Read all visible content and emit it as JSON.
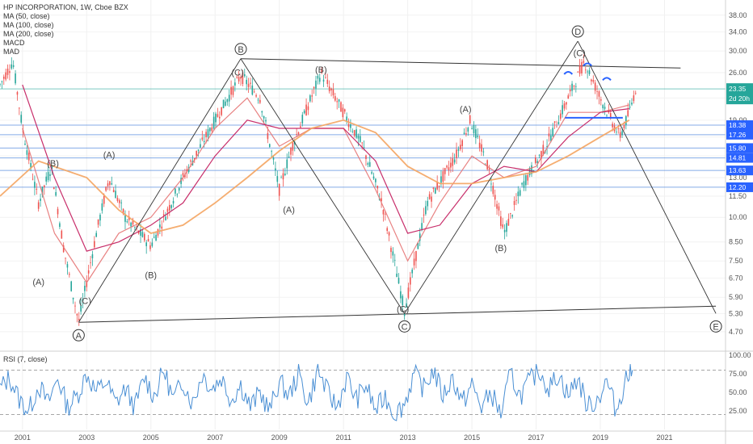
{
  "header": {
    "symbol_line": "HP INCORPORATION, 1W, Cboe BZX",
    "indicators": [
      "MA (50, close)",
      "MA (100, close)",
      "MA (200, close)",
      "MACD",
      "MAD"
    ]
  },
  "rsi_legend": "RSI (7, close)",
  "colors": {
    "candle_up": "#26a69a",
    "candle_down": "#ef5350",
    "ma50": "#e57373",
    "ma100": "#c2185b",
    "ma200": "#f4a460",
    "rsi": "#4a8fd4",
    "hline": "#5b8fe0",
    "price_badge": "#26a69a",
    "level_badge": "#2962ff"
  },
  "chart_data": [
    {
      "type": "line",
      "title": "HP INCORPORATION, 1W, Cboe BZX",
      "y_scale": "log",
      "ylim": [
        4.2,
        42
      ],
      "xlim": [
        2000.3,
        2022.9
      ],
      "x_ticks": [
        "2001",
        "2003",
        "2005",
        "2007",
        "2009",
        "2011",
        "2013",
        "2015",
        "2017",
        "2019",
        "2021"
      ],
      "y_ticks": [
        "4.70",
        "5.30",
        "5.90",
        "6.70",
        "7.50",
        "8.50",
        "10.00",
        "11.50",
        "13.00",
        "15.00",
        "17.00",
        "19.00",
        "22.00",
        "26.00",
        "30.00",
        "34.00",
        "38.00"
      ],
      "horizontal_levels": [
        "18.38",
        "17.26",
        "15.80",
        "14.81",
        "13.63",
        "12.20"
      ],
      "last_price": "23.35",
      "countdown": "2d 20h",
      "series": [
        {
          "name": "MA (50, close)",
          "x": [
            2001,
            2002,
            2003,
            2004,
            2005,
            2006,
            2007,
            2008,
            2009,
            2010,
            2011,
            2012,
            2013,
            2014,
            2015,
            2016,
            2017,
            2018,
            2019,
            2019.9
          ],
          "values": [
            18,
            9,
            6.5,
            9,
            10,
            13,
            18,
            22,
            16,
            18,
            18,
            12,
            7.5,
            11,
            15,
            13,
            14,
            20,
            20,
            21
          ]
        },
        {
          "name": "MA (100, close)",
          "x": [
            2001,
            2002,
            2003,
            2004,
            2005,
            2006,
            2007,
            2008,
            2009,
            2010,
            2011,
            2012,
            2013,
            2014,
            2015,
            2016,
            2017,
            2018,
            2019,
            2019.9
          ],
          "values": [
            24,
            13,
            8,
            8.5,
            9.5,
            11,
            15,
            19,
            18,
            18,
            18,
            14.5,
            9,
            9.5,
            12.5,
            14,
            13.5,
            17,
            20,
            20.5
          ]
        },
        {
          "name": "MA (200, close)",
          "x": [
            2000.3,
            2001.5,
            2003,
            2004,
            2005,
            2006,
            2007,
            2008,
            2009,
            2010,
            2011,
            2012,
            2013,
            2014,
            2015,
            2016,
            2017,
            2018,
            2019,
            2019.9
          ],
          "values": [
            11.5,
            14.5,
            13,
            10.5,
            9,
            9.5,
            11,
            13,
            15.5,
            18,
            19,
            17.5,
            14,
            12.5,
            12.5,
            13,
            13.5,
            15,
            17,
            19
          ]
        }
      ],
      "wave_points": [
        {
          "label": "A",
          "x": 2002.75,
          "y": 5.0
        },
        {
          "label": "B",
          "x": 2007.8,
          "y": 28.5
        },
        {
          "label": "C",
          "x": 2012.9,
          "y": 5.3
        },
        {
          "label": "D",
          "x": 2018.3,
          "y": 32.0
        },
        {
          "label": "E",
          "x": 2022.6,
          "y": 5.3
        }
      ],
      "annotations": [
        {
          "text": "(B)",
          "x": 2001.95,
          "y": 14.0
        },
        {
          "text": "(A)",
          "x": 2001.5,
          "y": 6.4
        },
        {
          "text": "(C)",
          "x": 2002.95,
          "y": 5.65
        },
        {
          "text": "(A)",
          "x": 2003.7,
          "y": 14.8
        },
        {
          "text": "(B)",
          "x": 2005.0,
          "y": 6.7
        },
        {
          "text": "(C)",
          "x": 2007.7,
          "y": 25.5
        },
        {
          "text": "(B)",
          "x": 2010.3,
          "y": 26.0
        },
        {
          "text": "(A)",
          "x": 2009.3,
          "y": 10.3
        },
        {
          "text": "(C)",
          "x": 2012.85,
          "y": 5.35
        },
        {
          "text": "(A)",
          "x": 2014.8,
          "y": 20.0
        },
        {
          "text": "(B)",
          "x": 2015.9,
          "y": 8.0
        },
        {
          "text": "(C)",
          "x": 2018.35,
          "y": 29.0
        }
      ]
    },
    {
      "type": "line",
      "title": "RSI (7, close)",
      "ylim": [
        0,
        100
      ],
      "y_ticks": [
        "100.00",
        "75.00",
        "50.00",
        "25.00"
      ],
      "x_ticks": [
        "2001",
        "2003",
        "2005",
        "2007",
        "2009",
        "2011",
        "2013",
        "2015",
        "2017",
        "2019",
        "2021"
      ],
      "bands": [
        80,
        20
      ],
      "series": [
        {
          "name": "RSI (7, close)",
          "x": [
            2000.3,
            2000.6,
            2000.9,
            2001.2,
            2001.5,
            2001.8,
            2002.1,
            2002.4,
            2002.7,
            2003.0,
            2003.3,
            2003.6,
            2003.9,
            2004.2,
            2004.5,
            2004.8,
            2005.1,
            2005.4,
            2005.7,
            2006.0,
            2006.3,
            2006.6,
            2006.9,
            2007.2,
            2007.5,
            2007.8,
            2008.1,
            2008.4,
            2008.7,
            2009.0,
            2009.3,
            2009.6,
            2009.9,
            2010.2,
            2010.5,
            2010.8,
            2011.1,
            2011.4,
            2011.7,
            2012.0,
            2012.3,
            2012.6,
            2012.9,
            2013.2,
            2013.5,
            2013.8,
            2014.1,
            2014.4,
            2014.7,
            2015.0,
            2015.3,
            2015.6,
            2015.9,
            2016.2,
            2016.5,
            2016.8,
            2017.1,
            2017.4,
            2017.7,
            2018.0,
            2018.3,
            2018.6,
            2018.9,
            2019.2,
            2019.5,
            2019.8,
            2020.0
          ],
          "values": [
            55,
            70,
            40,
            25,
            60,
            35,
            70,
            30,
            45,
            75,
            50,
            65,
            35,
            55,
            30,
            70,
            45,
            80,
            40,
            65,
            35,
            75,
            55,
            70,
            40,
            60,
            30,
            50,
            25,
            65,
            45,
            75,
            35,
            80,
            50,
            30,
            70,
            40,
            60,
            25,
            45,
            20,
            35,
            75,
            55,
            80,
            45,
            70,
            35,
            60,
            30,
            50,
            20,
            75,
            45,
            65,
            80,
            55,
            75,
            45,
            70,
            30,
            40,
            65,
            25,
            70,
            80
          ]
        }
      ]
    }
  ]
}
